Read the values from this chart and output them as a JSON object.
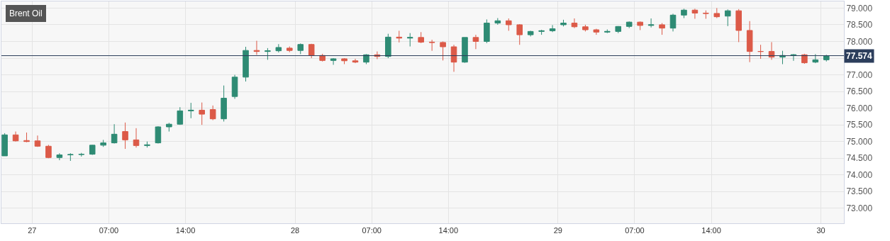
{
  "chart_data": {
    "type": "candlestick",
    "title": "Brent Oil",
    "x": [
      "--01-26T21:30",
      "--01-26T22:30",
      "--01-26T23:30",
      "--01-27T00:30",
      "--01-27T01:30",
      "--01-27T02:30",
      "--01-27T03:30",
      "--01-27T04:30",
      "--01-27T05:30",
      "--01-27T06:30",
      "--01-27T07:30",
      "--01-27T08:30",
      "--01-27T09:30",
      "--01-27T10:30",
      "--01-27T11:30",
      "--01-27T12:30",
      "--01-27T13:30",
      "--01-27T14:30",
      "--01-27T15:30",
      "--01-27T16:30",
      "--01-27T17:30",
      "--01-27T18:30",
      "--01-27T19:30",
      "--01-27T20:30",
      "--01-27T21:30",
      "--01-27T22:30",
      "--01-27T23:30",
      "--01-28T00:30",
      "--01-28T01:30",
      "--01-28T02:30",
      "--01-28T03:30",
      "--01-28T04:30",
      "--01-28T05:30",
      "--01-28T06:30",
      "--01-28T07:30",
      "--01-28T08:30",
      "--01-28T09:30",
      "--01-28T10:30",
      "--01-28T11:30",
      "--01-28T12:30",
      "--01-28T13:30",
      "--01-28T14:30",
      "--01-28T15:30",
      "--01-28T16:30",
      "--01-28T17:30",
      "--01-28T18:30",
      "--01-28T19:30",
      "--01-28T20:30",
      "--01-28T21:30",
      "--01-28T22:30",
      "--01-28T23:30",
      "--01-29T00:30",
      "--01-29T01:30",
      "--01-29T02:30",
      "--01-29T03:30",
      "--01-29T04:30",
      "--01-29T05:30",
      "--01-29T06:30",
      "--01-29T07:30",
      "--01-29T08:30",
      "--01-29T09:30",
      "--01-29T10:30",
      "--01-29T11:30",
      "--01-29T12:30",
      "--01-29T13:30",
      "--01-29T14:30",
      "--01-29T15:30",
      "--01-29T16:30",
      "--01-29T17:30",
      "--01-29T18:30",
      "--01-29T19:30",
      "--01-29T20:30",
      "--01-29T21:30",
      "--01-29T22:30",
      "--01-29T23:30",
      "--01-30T00:30"
    ],
    "ohlc": [
      [
        74.57,
        75.25,
        74.57,
        75.2
      ],
      [
        75.2,
        75.3,
        75.0,
        75.02
      ],
      [
        75.03,
        75.27,
        74.98,
        75.0
      ],
      [
        75.02,
        75.18,
        74.84,
        74.86
      ],
      [
        74.86,
        74.9,
        74.5,
        74.52
      ],
      [
        74.52,
        74.65,
        74.44,
        74.6
      ],
      [
        74.6,
        74.65,
        74.42,
        74.61
      ],
      [
        74.61,
        74.66,
        74.55,
        74.62
      ],
      [
        74.62,
        74.9,
        74.6,
        74.89
      ],
      [
        74.89,
        75.05,
        74.84,
        74.96
      ],
      [
        74.96,
        75.52,
        74.94,
        75.22
      ],
      [
        75.3,
        75.57,
        74.78,
        75.05
      ],
      [
        75.05,
        75.4,
        74.82,
        74.88
      ],
      [
        74.88,
        75.0,
        74.82,
        74.9
      ],
      [
        74.96,
        75.46,
        74.94,
        75.44
      ],
      [
        75.44,
        75.56,
        75.3,
        75.52
      ],
      [
        75.52,
        76.03,
        75.5,
        75.92
      ],
      [
        75.92,
        76.16,
        75.7,
        75.94
      ],
      [
        75.94,
        76.17,
        75.5,
        75.82
      ],
      [
        75.96,
        76.08,
        75.64,
        75.68
      ],
      [
        75.68,
        76.68,
        75.6,
        76.3
      ],
      [
        76.35,
        77.0,
        76.28,
        76.93
      ],
      [
        76.93,
        77.84,
        76.8,
        77.73
      ],
      [
        77.73,
        78.02,
        77.6,
        77.7
      ],
      [
        77.7,
        77.8,
        77.45,
        77.72
      ],
      [
        77.72,
        77.92,
        77.67,
        77.82
      ],
      [
        77.8,
        77.85,
        77.68,
        77.73
      ],
      [
        77.73,
        77.94,
        77.62,
        77.91
      ],
      [
        77.91,
        77.93,
        77.5,
        77.58
      ],
      [
        77.58,
        77.63,
        77.4,
        77.43
      ],
      [
        77.43,
        77.5,
        77.3,
        77.48
      ],
      [
        77.48,
        77.5,
        77.32,
        77.42
      ],
      [
        77.42,
        77.48,
        77.35,
        77.38
      ],
      [
        77.38,
        77.62,
        77.32,
        77.6
      ],
      [
        77.6,
        77.7,
        77.47,
        77.55
      ],
      [
        77.55,
        78.23,
        77.5,
        78.13
      ],
      [
        78.13,
        78.32,
        77.97,
        78.1
      ],
      [
        78.1,
        78.25,
        77.85,
        78.12
      ],
      [
        78.12,
        78.28,
        77.95,
        77.98
      ],
      [
        77.98,
        78.05,
        77.72,
        77.97
      ],
      [
        77.97,
        78.0,
        77.43,
        77.84
      ],
      [
        77.84,
        77.9,
        77.09,
        77.38
      ],
      [
        77.38,
        78.12,
        77.36,
        78.12
      ],
      [
        78.12,
        78.2,
        77.77,
        78.0
      ],
      [
        78.0,
        78.66,
        77.95,
        78.55
      ],
      [
        78.55,
        78.7,
        78.5,
        78.62
      ],
      [
        78.62,
        78.69,
        78.32,
        78.5
      ],
      [
        78.5,
        78.52,
        77.9,
        78.2
      ],
      [
        78.2,
        78.32,
        78.15,
        78.3
      ],
      [
        78.3,
        78.35,
        78.2,
        78.32
      ],
      [
        78.32,
        78.49,
        78.28,
        78.38
      ],
      [
        78.5,
        78.65,
        78.45,
        78.55
      ],
      [
        78.55,
        78.69,
        78.4,
        78.44
      ],
      [
        78.44,
        78.5,
        78.3,
        78.35
      ],
      [
        78.35,
        78.38,
        78.2,
        78.28
      ],
      [
        78.28,
        78.36,
        78.25,
        78.3
      ],
      [
        78.3,
        78.46,
        78.25,
        78.45
      ],
      [
        78.45,
        78.6,
        78.4,
        78.58
      ],
      [
        78.58,
        78.6,
        78.34,
        78.48
      ],
      [
        78.48,
        78.69,
        78.42,
        78.5
      ],
      [
        78.5,
        78.55,
        78.2,
        78.4
      ],
      [
        78.4,
        78.83,
        78.3,
        78.79
      ],
      [
        78.79,
        78.98,
        78.7,
        78.94
      ],
      [
        78.94,
        78.98,
        78.68,
        78.85
      ],
      [
        78.85,
        78.93,
        78.68,
        78.84
      ],
      [
        78.84,
        79.0,
        78.7,
        78.74
      ],
      [
        78.76,
        78.96,
        78.46,
        78.92
      ],
      [
        78.92,
        78.97,
        77.98,
        78.33
      ],
      [
        78.33,
        78.61,
        77.38,
        77.7
      ],
      [
        77.7,
        77.9,
        77.48,
        77.7
      ],
      [
        77.7,
        77.98,
        77.45,
        77.53
      ],
      [
        77.53,
        77.72,
        77.32,
        77.58
      ],
      [
        77.58,
        77.62,
        77.42,
        77.6
      ],
      [
        77.6,
        77.63,
        77.33,
        77.36
      ],
      [
        77.38,
        77.62,
        77.35,
        77.45
      ],
      [
        77.45,
        77.6,
        77.4,
        77.57
      ]
    ],
    "xlim": [
      "--01-26T21:12",
      "--01-30T02:06"
    ],
    "xticks": [
      {
        "value": "--01-27",
        "label": "27"
      },
      {
        "value": "--01-27T07:00",
        "label": "07:00"
      },
      {
        "value": "--01-27T14:00",
        "label": "14:00"
      },
      {
        "value": "--01-28",
        "label": "28"
      },
      {
        "value": "--01-28T07:00",
        "label": "07:00"
      },
      {
        "value": "--01-28T14:00",
        "label": "14:00"
      },
      {
        "value": "--01-29",
        "label": "29"
      },
      {
        "value": "--01-29T07:00",
        "label": "07:00"
      },
      {
        "value": "--01-29T14:00",
        "label": "14:00"
      },
      {
        "value": "--01-30",
        "label": "30"
      }
    ],
    "ylim": [
      72.55,
      79.2
    ],
    "yticks": [
      {
        "value": 73,
        "label": "73.000"
      },
      {
        "value": 73.5,
        "label": "73.500"
      },
      {
        "value": 74,
        "label": "74.000"
      },
      {
        "value": 74.5,
        "label": "74.500"
      },
      {
        "value": 75,
        "label": "75.000"
      },
      {
        "value": 75.5,
        "label": "75.500"
      },
      {
        "value": 76,
        "label": "76.000"
      },
      {
        "value": 76.5,
        "label": "76.500"
      },
      {
        "value": 77,
        "label": "77.000"
      },
      {
        "value": 77.5,
        "label": null
      },
      {
        "value": 78,
        "label": "78.000"
      },
      {
        "value": 78.5,
        "label": "78.500"
      },
      {
        "value": 79,
        "label": "79.000"
      }
    ],
    "ref_lines": [
      {
        "axis": "y",
        "value": 77.574,
        "label": "77.574",
        "color": "#2c3e5c"
      }
    ],
    "grid": true
  }
}
